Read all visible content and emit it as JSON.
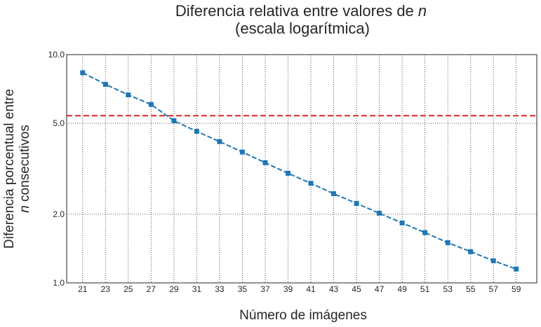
{
  "chart_data": {
    "type": "line",
    "title_line1": "Diferencia relativa entre valores de ",
    "title_var": "n",
    "title_line2": "(escala logarítmica)",
    "xlabel": "Número de imágenes",
    "ylabel_line1": "Diferencia porcentual entre",
    "ylabel_var": "n",
    "ylabel_line2": " consecutivos",
    "yscale": "log",
    "ylim": [
      1.0,
      10.0
    ],
    "xlim": [
      19.6,
      60.8
    ],
    "yticks": [
      1.0,
      2.0,
      5.0,
      10.0
    ],
    "ytick_labels": [
      "1.0",
      "2.0",
      "5.0",
      "10.0"
    ],
    "xticks": [
      21,
      23,
      25,
      27,
      29,
      31,
      33,
      35,
      37,
      39,
      41,
      43,
      45,
      47,
      49,
      51,
      53,
      55,
      57,
      59
    ],
    "grid": true,
    "series": [
      {
        "color": "#1f77b4",
        "linestyle": "dashed",
        "marker": "square",
        "x": [
          21,
          23,
          25,
          27,
          29,
          31,
          33,
          35,
          37,
          39,
          41,
          43,
          45,
          47,
          49,
          51,
          53,
          55,
          57,
          59
        ],
        "y": [
          8.33,
          7.41,
          6.66,
          6.05,
          5.13,
          4.61,
          4.16,
          3.74,
          3.36,
          3.02,
          2.73,
          2.46,
          2.23,
          2.02,
          1.83,
          1.66,
          1.5,
          1.37,
          1.25,
          1.15
        ]
      }
    ],
    "reference_line": {
      "y": 5.4,
      "color": "#d62728",
      "linestyle": "dashed"
    }
  }
}
